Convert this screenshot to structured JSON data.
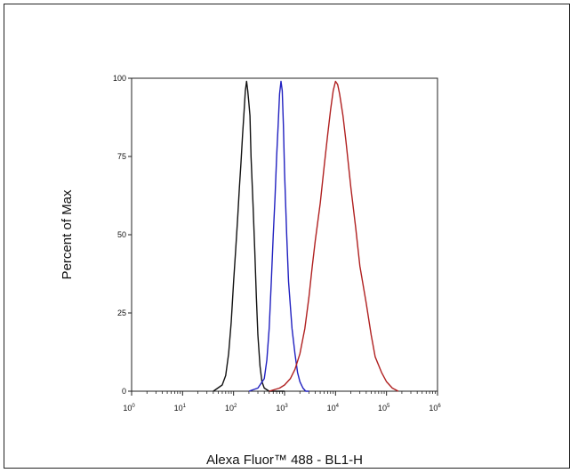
{
  "chart_data": {
    "type": "line",
    "title": "",
    "xlabel": "Alexa Fluor™ 488 - BL1-H",
    "ylabel": "Percent of Max",
    "x_scale": "log",
    "xlim": [
      1,
      1000000
    ],
    "ylim": [
      0,
      100
    ],
    "grid": false,
    "legend": "none",
    "x_tick_labels": [
      "10",
      "10",
      "10",
      "10",
      "10",
      "10",
      "10"
    ],
    "x_tick_exponents": [
      "0",
      "1",
      "2",
      "3",
      "4",
      "5",
      "6"
    ],
    "x_tick_values": [
      1,
      10,
      100,
      1000,
      10000,
      100000,
      1000000
    ],
    "y_tick_labels": [
      "0",
      "25",
      "50",
      "75",
      "100"
    ],
    "y_tick_values": [
      0,
      25,
      50,
      75,
      100
    ],
    "series": [
      {
        "color": "#111111",
        "x": [
          40,
          60,
          70,
          80,
          90,
          100,
          110,
          120,
          130,
          140,
          150,
          160,
          170,
          180,
          190,
          200,
          210,
          220,
          240,
          260,
          280,
          300,
          330,
          360,
          400,
          500,
          1000
        ],
        "y": [
          0,
          2,
          5,
          12,
          22,
          35,
          45,
          55,
          65,
          73,
          82,
          89,
          96,
          99,
          96,
          92,
          88,
          75,
          60,
          45,
          30,
          18,
          8,
          3,
          1,
          0,
          0
        ]
      },
      {
        "color": "#2020c0",
        "x": [
          200,
          300,
          400,
          450,
          500,
          550,
          600,
          650,
          700,
          750,
          800,
          850,
          900,
          950,
          1000,
          1100,
          1200,
          1400,
          1600,
          1800,
          2000,
          2300,
          2600,
          3000
        ],
        "y": [
          0,
          1,
          4,
          10,
          20,
          35,
          50,
          62,
          75,
          85,
          95,
          99,
          96,
          85,
          70,
          50,
          35,
          20,
          12,
          6,
          3,
          1,
          0,
          0
        ]
      },
      {
        "color": "#b02020",
        "x": [
          500,
          800,
          1000,
          1300,
          1600,
          2000,
          2500,
          3000,
          3500,
          4000,
          5000,
          6000,
          7000,
          8000,
          9000,
          10000,
          11000,
          12000,
          14000,
          16000,
          20000,
          25000,
          30000,
          40000,
          50000,
          60000,
          80000,
          100000,
          130000,
          170000
        ],
        "y": [
          0,
          1,
          2,
          4,
          7,
          12,
          20,
          30,
          40,
          48,
          60,
          72,
          82,
          90,
          96,
          99,
          98,
          95,
          88,
          80,
          65,
          52,
          40,
          28,
          18,
          11,
          6,
          3,
          1,
          0
        ]
      }
    ]
  }
}
